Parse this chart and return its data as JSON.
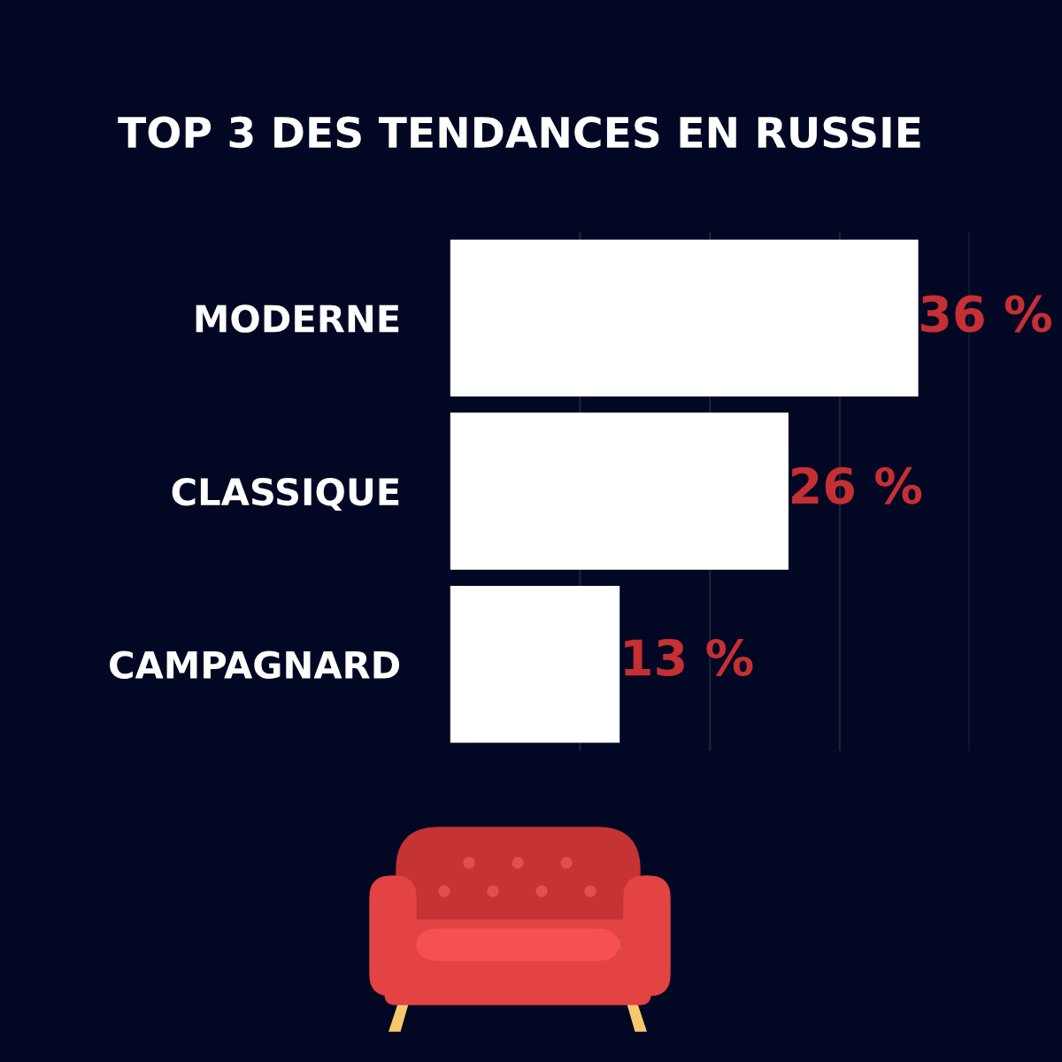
{
  "chart_data": {
    "type": "bar",
    "orientation": "horizontal",
    "title": "TOP 3 DES TENDANCES EN RUSSIE",
    "categories": [
      "MODERNE",
      "CLASSIQUE",
      "CAMPAGNARD"
    ],
    "values": [
      36,
      26,
      13
    ],
    "value_labels": [
      "36 %",
      "26 %",
      "13 %"
    ],
    "color": "#ffffff",
    "xlim": [
      0,
      40
    ],
    "xticks": [
      {
        "value": 10,
        "label": null
      },
      {
        "value": 20,
        "label": null
      },
      {
        "value": 30,
        "label": null
      },
      {
        "value": 40,
        "label": null
      }
    ],
    "tick_labels": "y",
    "grid": "x"
  }
}
